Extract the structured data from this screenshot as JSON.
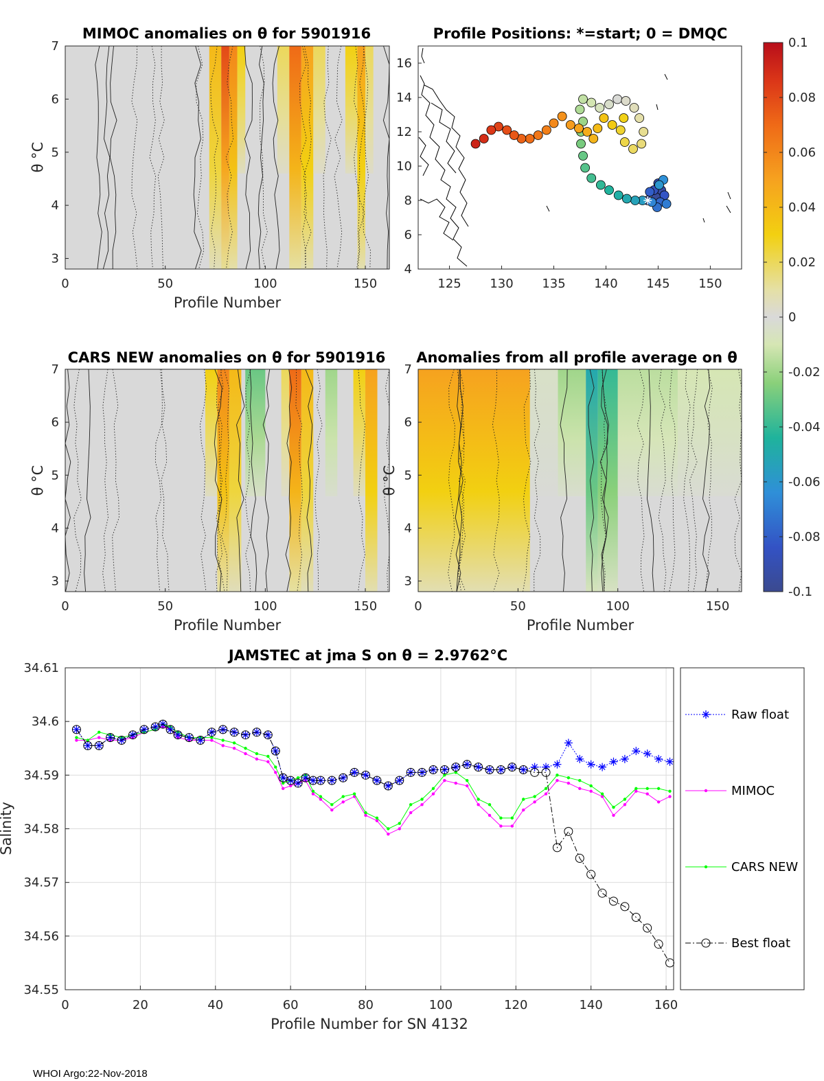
{
  "footer": "WHOI Argo:22-Nov-2018",
  "chart_data": [
    {
      "id": "mimoc",
      "type": "heatmap",
      "title": "MIMOC anomalies on θ  for 5901916",
      "xlabel": "Profile Number",
      "ylabel": "θ °C",
      "xlim": [
        0,
        162
      ],
      "ylim": [
        2.8,
        7.0
      ],
      "xticks": [
        "0",
        "50",
        "100",
        "150"
      ],
      "yticks": [
        "3",
        "4",
        "5",
        "6",
        "7"
      ],
      "bands": [
        {
          "x0": 72,
          "x1": 78,
          "value": 0.04
        },
        {
          "x0": 78,
          "x1": 82,
          "value": 0.08
        },
        {
          "x0": 82,
          "x1": 86,
          "value": 0.06
        },
        {
          "x0": 86,
          "x1": 90,
          "value": 0.03
        },
        {
          "x0": 106,
          "x1": 112,
          "value": 0.02
        },
        {
          "x0": 112,
          "x1": 118,
          "value": 0.07
        },
        {
          "x0": 118,
          "x1": 124,
          "value": 0.05
        },
        {
          "x0": 124,
          "x1": 130,
          "value": 0.02
        },
        {
          "x0": 140,
          "x1": 146,
          "value": 0.03
        },
        {
          "x0": 146,
          "x1": 150,
          "value": 0.05
        },
        {
          "x0": 150,
          "x1": 154,
          "value": 0.02
        }
      ]
    },
    {
      "id": "positions",
      "type": "scatter",
      "title": "Profile Positions: *=start; 0 = DMQC",
      "xlim": [
        122,
        153
      ],
      "ylim": [
        4,
        17
      ],
      "xticks": [
        "125",
        "130",
        "135",
        "140",
        "145",
        "150"
      ],
      "yticks": [
        "4",
        "6",
        "8",
        "10",
        "12",
        "14",
        "16"
      ],
      "start": [
        144.0,
        8.0
      ],
      "track": [
        [
          144.0,
          8.0
        ],
        [
          144.8,
          8.2
        ],
        [
          145.3,
          8.6
        ],
        [
          145.0,
          9.0
        ],
        [
          144.6,
          8.6
        ],
        [
          145.6,
          8.3
        ],
        [
          144.2,
          8.5
        ],
        [
          145.2,
          7.9
        ],
        [
          144.9,
          7.6
        ],
        [
          145.8,
          7.8
        ],
        [
          144.4,
          7.9
        ],
        [
          145.5,
          9.2
        ],
        [
          145.1,
          8.9
        ],
        [
          143.5,
          8.0
        ],
        [
          142.8,
          8.0
        ],
        [
          142.0,
          8.1
        ],
        [
          141.2,
          8.3
        ],
        [
          140.3,
          8.6
        ],
        [
          139.5,
          8.9
        ],
        [
          138.6,
          9.3
        ],
        [
          138.0,
          9.9
        ],
        [
          137.8,
          10.6
        ],
        [
          137.6,
          11.3
        ],
        [
          137.6,
          12.0
        ],
        [
          137.8,
          12.6
        ],
        [
          137.5,
          13.3
        ],
        [
          137.8,
          13.9
        ],
        [
          138.6,
          13.7
        ],
        [
          139.4,
          13.4
        ],
        [
          140.3,
          13.6
        ],
        [
          141.1,
          13.9
        ],
        [
          141.9,
          13.8
        ],
        [
          142.7,
          13.4
        ],
        [
          143.2,
          12.8
        ],
        [
          143.6,
          12.0
        ],
        [
          143.4,
          11.3
        ],
        [
          142.6,
          11.0
        ],
        [
          141.8,
          11.4
        ],
        [
          141.4,
          12.1
        ],
        [
          141.7,
          12.8
        ],
        [
          140.6,
          12.4
        ],
        [
          139.8,
          12.8
        ],
        [
          139.2,
          12.2
        ],
        [
          138.8,
          11.6
        ],
        [
          138.2,
          12.0
        ],
        [
          137.4,
          12.2
        ],
        [
          136.6,
          12.4
        ],
        [
          135.8,
          12.9
        ],
        [
          135.0,
          12.5
        ],
        [
          134.3,
          12.1
        ],
        [
          133.5,
          11.8
        ],
        [
          132.7,
          11.6
        ],
        [
          131.9,
          11.6
        ],
        [
          131.2,
          11.8
        ],
        [
          130.5,
          12.1
        ],
        [
          129.7,
          12.3
        ],
        [
          129.0,
          12.1
        ],
        [
          128.3,
          11.6
        ],
        [
          127.5,
          11.3
        ]
      ]
    },
    {
      "id": "cars",
      "type": "heatmap",
      "title": "CARS NEW anomalies on θ for 5901916",
      "xlabel": "Profile Number",
      "ylabel": "θ °C",
      "xlim": [
        0,
        162
      ],
      "ylim": [
        2.8,
        7.0
      ],
      "xticks": [
        "0",
        "50",
        "100",
        "150"
      ],
      "yticks": [
        "3",
        "4",
        "5",
        "6",
        "7"
      ],
      "bands": [
        {
          "x0": 70,
          "x1": 76,
          "value": 0.03
        },
        {
          "x0": 76,
          "x1": 82,
          "value": 0.06
        },
        {
          "x0": 82,
          "x1": 88,
          "value": 0.04
        },
        {
          "x0": 90,
          "x1": 100,
          "value": -0.03
        },
        {
          "x0": 108,
          "x1": 112,
          "value": 0.02
        },
        {
          "x0": 112,
          "x1": 118,
          "value": 0.07
        },
        {
          "x0": 118,
          "x1": 124,
          "value": 0.04
        },
        {
          "x0": 130,
          "x1": 136,
          "value": -0.02
        },
        {
          "x0": 144,
          "x1": 150,
          "value": 0.03
        },
        {
          "x0": 150,
          "x1": 156,
          "value": 0.05
        }
      ]
    },
    {
      "id": "allavg",
      "type": "heatmap",
      "title": "Anomalies from all profile average on θ",
      "xlabel": "Profile Number",
      "ylabel": "θ °C",
      "xlim": [
        0,
        162
      ],
      "ylim": [
        2.8,
        7.0
      ],
      "xticks": [
        "0",
        "50",
        "100",
        "150"
      ],
      "yticks": [
        "3",
        "4",
        "5",
        "6",
        "7"
      ],
      "bands": [
        {
          "x0": 0,
          "x1": 56,
          "value": 0.05
        },
        {
          "x0": 56,
          "x1": 70,
          "value": -0.005
        },
        {
          "x0": 70,
          "x1": 84,
          "value": -0.02
        },
        {
          "x0": 84,
          "x1": 90,
          "value": -0.05
        },
        {
          "x0": 90,
          "x1": 100,
          "value": -0.04
        },
        {
          "x0": 100,
          "x1": 130,
          "value": -0.015
        },
        {
          "x0": 130,
          "x1": 162,
          "value": -0.01
        }
      ]
    },
    {
      "id": "salinity",
      "type": "line",
      "title": "JAMSTEC at jma S on θ = 2.9762°C",
      "xlabel": "Profile Number for SN 4132",
      "ylabel": "Salinity",
      "xlim": [
        0,
        162
      ],
      "ylim": [
        34.55,
        34.61
      ],
      "xticks": [
        "0",
        "20",
        "40",
        "60",
        "80",
        "100",
        "120",
        "140",
        "160"
      ],
      "yticks": [
        "34.55",
        "34.56",
        "34.57",
        "34.58",
        "34.59",
        "34.6",
        "34.61"
      ],
      "x": [
        3,
        6,
        9,
        12,
        15,
        18,
        21,
        24,
        26,
        28,
        30,
        33,
        36,
        39,
        42,
        45,
        48,
        51,
        54,
        56,
        58,
        60,
        62,
        64,
        66,
        68,
        71,
        74,
        77,
        80,
        83,
        86,
        89,
        92,
        95,
        98,
        101,
        104,
        107,
        110,
        113,
        116,
        119,
        122,
        125,
        128,
        131,
        134,
        137,
        140,
        143,
        146,
        149,
        152,
        155,
        158,
        161
      ],
      "series": [
        {
          "name": "Raw float",
          "color": "#0000ff",
          "values": [
            34.5985,
            34.5955,
            34.5955,
            34.597,
            34.5965,
            34.5975,
            34.5985,
            34.599,
            34.5995,
            34.5985,
            34.5975,
            34.597,
            34.5965,
            34.598,
            34.5985,
            34.598,
            34.5975,
            34.598,
            34.5975,
            34.5945,
            34.5895,
            34.589,
            34.5885,
            34.5895,
            34.589,
            34.589,
            34.589,
            34.5895,
            34.5905,
            34.59,
            34.589,
            34.588,
            34.589,
            34.5905,
            34.5905,
            34.591,
            34.591,
            34.5915,
            34.592,
            34.5915,
            34.591,
            34.591,
            34.5915,
            34.591,
            34.5915,
            34.5915,
            34.592,
            34.596,
            34.593,
            34.592,
            34.5915,
            34.5925,
            34.593,
            34.5945,
            34.594,
            34.593,
            34.5925
          ]
        },
        {
          "name": "MIMOC",
          "color": "#ff00ff",
          "values": [
            34.5965,
            34.5965,
            34.597,
            34.5965,
            34.5965,
            34.597,
            34.598,
            34.5985,
            34.599,
            34.5985,
            34.597,
            34.5965,
            34.5965,
            34.5965,
            34.5955,
            34.595,
            34.594,
            34.593,
            34.5925,
            34.5905,
            34.5875,
            34.588,
            34.5885,
            34.589,
            34.5865,
            34.5855,
            34.5835,
            34.585,
            34.586,
            34.5825,
            34.5815,
            34.579,
            34.58,
            34.583,
            34.5845,
            34.5865,
            34.589,
            34.5885,
            34.588,
            34.5845,
            34.5825,
            34.5805,
            34.5805,
            34.5835,
            34.585,
            34.5865,
            34.589,
            34.5885,
            34.5875,
            34.587,
            34.586,
            34.5825,
            34.5845,
            34.587,
            34.5865,
            34.585,
            34.586
          ]
        },
        {
          "name": "CARS NEW",
          "color": "#00ff00",
          "values": [
            34.597,
            34.5965,
            34.598,
            34.5975,
            34.597,
            34.5975,
            34.598,
            34.5985,
            34.5995,
            34.599,
            34.598,
            34.597,
            34.597,
            34.597,
            34.5965,
            34.596,
            34.595,
            34.594,
            34.5935,
            34.5915,
            34.5885,
            34.589,
            34.5895,
            34.59,
            34.587,
            34.586,
            34.5845,
            34.586,
            34.5865,
            34.583,
            34.582,
            34.58,
            34.581,
            34.5845,
            34.5855,
            34.5875,
            34.59,
            34.5905,
            34.589,
            34.5855,
            34.5845,
            34.582,
            34.582,
            34.5855,
            34.586,
            34.5875,
            34.59,
            34.5895,
            34.589,
            34.588,
            34.5865,
            34.584,
            34.5855,
            34.5875,
            34.5875,
            34.5875,
            34.587
          ]
        },
        {
          "name": "Best float",
          "color": "#000000",
          "values": [
            34.5985,
            34.5955,
            34.5955,
            34.597,
            34.5965,
            34.5975,
            34.5985,
            34.599,
            34.5995,
            34.5985,
            34.5975,
            34.597,
            34.5965,
            34.598,
            34.5985,
            34.598,
            34.5975,
            34.598,
            34.5975,
            34.5945,
            34.5895,
            34.589,
            34.5885,
            34.5895,
            34.589,
            34.589,
            34.589,
            34.5895,
            34.5905,
            34.59,
            34.589,
            34.588,
            34.589,
            34.5905,
            34.5905,
            34.591,
            34.591,
            34.5915,
            34.592,
            34.5915,
            34.591,
            34.591,
            34.5915,
            34.591,
            34.5905,
            34.5905,
            34.5765,
            34.5795,
            34.5745,
            34.5715,
            34.568,
            34.5665,
            34.5655,
            34.5635,
            34.5615,
            34.5585,
            34.555
          ]
        }
      ]
    },
    {
      "id": "colorbar",
      "type": "heatmap",
      "colormap": "parula-like",
      "range": [
        -0.1,
        0.1
      ],
      "ticks": [
        "0.1",
        "0.08",
        "0.06",
        "0.04",
        "0.02",
        "0",
        "-0.02",
        "-0.04",
        "-0.06",
        "-0.08",
        "-0.1"
      ]
    }
  ]
}
